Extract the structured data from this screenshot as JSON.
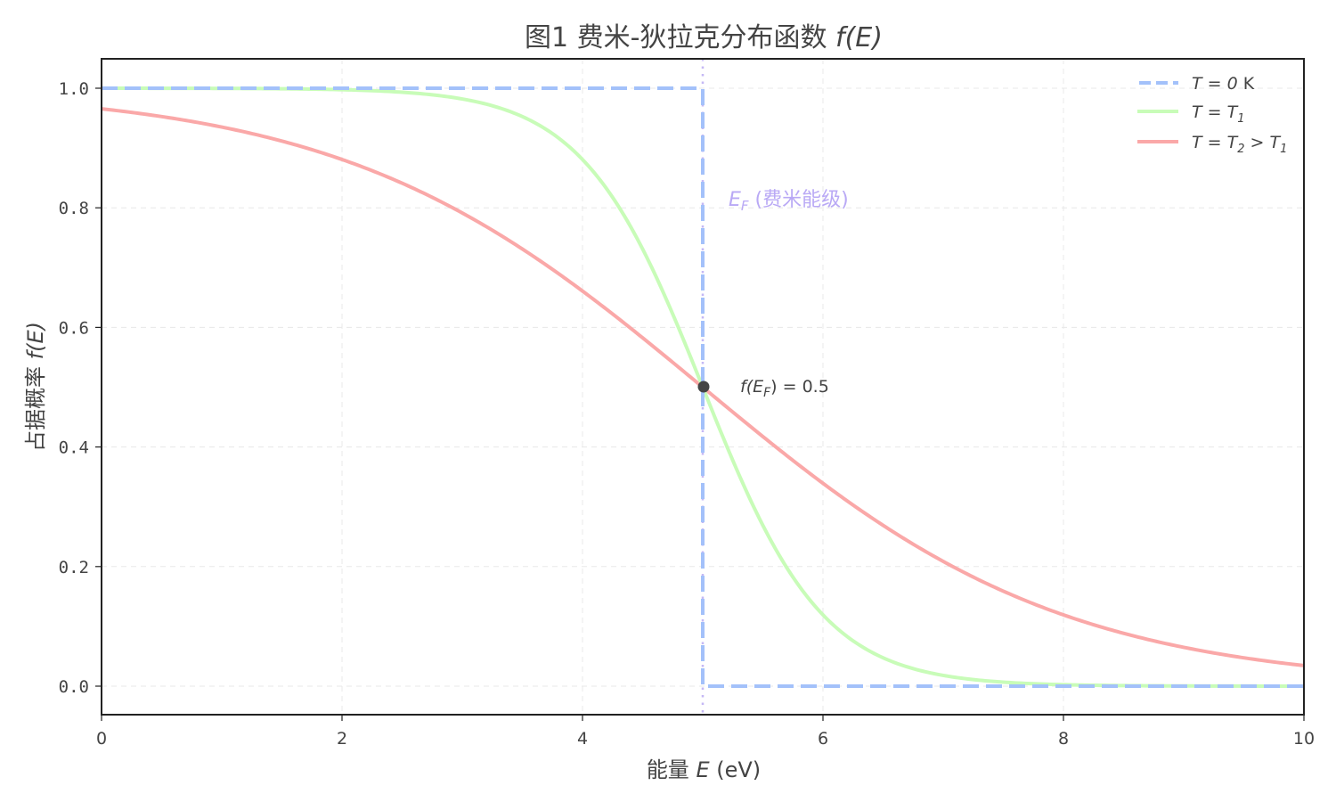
{
  "chart": {
    "title_prefix": "图1 费米-狄拉克分布函数 ",
    "title_math": "f(E)",
    "xlabel_prefix": "能量 ",
    "xlabel_math": "E",
    "xlabel_suffix": " (eV)",
    "ylabel_prefix": "占据概率 ",
    "ylabel_math": "f(E)",
    "ef_label_math": "E",
    "ef_label_sub": "F",
    "ef_label_text": " (费米能级)",
    "point_label_prefix": "f(E",
    "point_label_sub": "F",
    "point_label_suffix": ") = 0.5",
    "legend": [
      {
        "label": "T = 0 K"
      },
      {
        "label": "T = T1"
      },
      {
        "label": "T = T2 > T1"
      }
    ],
    "colors": {
      "t0": "#a3c1fa",
      "t1": "#c8fcb8",
      "t2": "#faa8a8",
      "ef_line": "#c5b8f5",
      "ef_text": "#b9a9f5",
      "point": "#444444",
      "axis": "#222222",
      "text": "#444444"
    }
  },
  "chart_data": {
    "type": "line",
    "title": "图1 费米-狄拉克分布函数 f(E)",
    "xlabel": "能量 E (eV)",
    "ylabel": "占据概率 f(E)",
    "xlim": [
      0,
      10
    ],
    "ylim": [
      -0.047,
      1.05
    ],
    "xticks": [
      0,
      2,
      4,
      6,
      8,
      10
    ],
    "yticks": [
      0.0,
      0.2,
      0.4,
      0.6,
      0.8,
      1.0
    ],
    "grid": true,
    "legend_position": "upper right",
    "fermi_energy_eV": 5,
    "series": [
      {
        "name": "T = 0 K",
        "style": "dashed",
        "x": [
          0,
          5,
          5,
          10
        ],
        "y": [
          1.0,
          1.0,
          0.0,
          0.0
        ]
      },
      {
        "name": "T = T1",
        "style": "solid",
        "kT_eV": 0.5,
        "x": [
          0,
          1,
          2,
          3,
          3.5,
          4,
          4.5,
          5,
          5.5,
          6,
          6.5,
          7,
          8,
          9,
          10
        ],
        "y": [
          1.0,
          1.0,
          0.998,
          0.982,
          0.953,
          0.881,
          0.731,
          0.5,
          0.269,
          0.119,
          0.047,
          0.018,
          0.002,
          0.0,
          0.0
        ]
      },
      {
        "name": "T = T2 > T1",
        "style": "solid",
        "kT_eV": 1.5,
        "x": [
          0,
          1,
          2,
          3,
          4,
          5,
          6,
          7,
          8,
          9,
          10
        ],
        "y": [
          0.966,
          0.935,
          0.881,
          0.791,
          0.661,
          0.5,
          0.339,
          0.209,
          0.119,
          0.065,
          0.034
        ]
      }
    ],
    "annotations": [
      {
        "text": "E_F (费米能级)",
        "x": 5.2,
        "y": 0.81
      },
      {
        "text": "f(E_F) = 0.5",
        "x": 5.3,
        "y": 0.5,
        "marker_at": [
          5,
          0.5
        ]
      }
    ]
  }
}
